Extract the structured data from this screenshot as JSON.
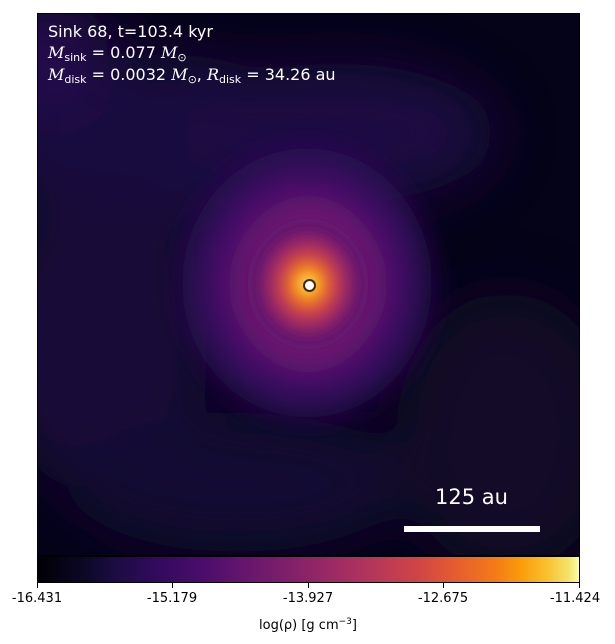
{
  "annotation": {
    "line1": "Sink 68, t=103.4 kyr",
    "sink_symbol": "M",
    "sink_sub": "sink",
    "sink_value": " = 0.077 ",
    "sink_unit": "M",
    "sink_unit_sub": "⊙",
    "disk_symbol": "M",
    "disk_sub": "disk",
    "disk_value": " = 0.0032 ",
    "disk_unit": "M",
    "disk_unit_sub": "⊙",
    "radius_sep": ", ",
    "radius_symbol": "R",
    "radius_sub": "disk",
    "radius_value": " = 34.26 au"
  },
  "scale_bar": {
    "label": "125 au"
  },
  "colorbar": {
    "colormap": "inferno",
    "min": -16.431,
    "max": -11.424,
    "ticks": [
      "-16.431",
      "-15.179",
      "-13.927",
      "-12.675",
      "-11.424"
    ],
    "label_main": "log(ρ) [g cm",
    "label_exp": "−3",
    "label_end": "]"
  }
}
